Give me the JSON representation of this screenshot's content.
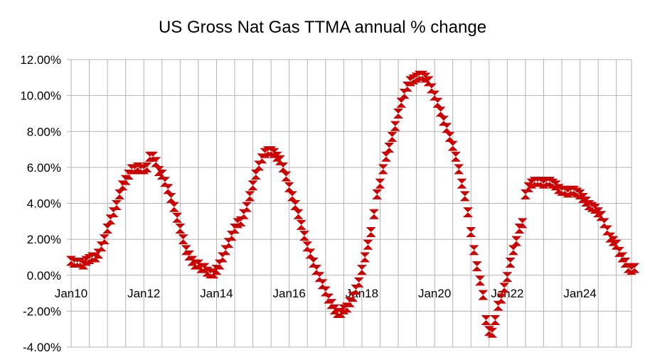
{
  "chart_data": {
    "type": "scatter",
    "title": "US Gross Nat Gas TTMA annual  % change",
    "xlabel": "",
    "ylabel": "",
    "marker": "hourglass",
    "marker_color": "#cc0000",
    "grid": true,
    "legend": "none",
    "x_ticks": [
      "Jan10",
      "Jan12",
      "Jan14",
      "Jan16",
      "Jan18",
      "Jan20",
      "Jan22",
      "Jan24"
    ],
    "y_ticks": [
      "-4.00%",
      "-2.00%",
      "0.00%",
      "2.00%",
      "4.00%",
      "6.00%",
      "8.00%",
      "10.00%",
      "12.00%"
    ],
    "xlim": [
      "2010-01",
      "2025-06"
    ],
    "ylim": [
      -4,
      12
    ],
    "series": [
      {
        "name": "",
        "start": "2010-01",
        "frequency": "monthly",
        "values": [
          0.8,
          0.7,
          0.7,
          0.7,
          0.6,
          0.8,
          0.9,
          1.0,
          1.0,
          1.2,
          1.6,
          2.0,
          2.6,
          3.1,
          3.5,
          3.9,
          4.5,
          5.0,
          5.3,
          5.6,
          5.9,
          5.9,
          6.0,
          5.9,
          5.9,
          6.0,
          6.6,
          6.6,
          6.3,
          5.8,
          5.6,
          5.2,
          4.8,
          4.3,
          3.8,
          3.2,
          2.6,
          2.0,
          1.4,
          1.1,
          0.8,
          0.6,
          0.6,
          0.4,
          0.4,
          0.2,
          0.1,
          0.1,
          0.3,
          0.6,
          1.0,
          1.4,
          1.8,
          2.2,
          2.6,
          2.9,
          3.0,
          3.4,
          3.8,
          4.4,
          5.0,
          5.6,
          6.1,
          6.5,
          6.8,
          6.9,
          6.9,
          6.8,
          6.6,
          6.4,
          6.0,
          5.5,
          4.9,
          4.4,
          3.9,
          3.4,
          2.8,
          2.2,
          1.6,
          1.2,
          0.7,
          0.3,
          -0.1,
          -0.5,
          -0.9,
          -1.3,
          -1.6,
          -1.9,
          -2.1,
          -2.1,
          -1.9,
          -1.8,
          -1.5,
          -1.2,
          -0.8,
          -0.4,
          0.3,
          1.0,
          1.7,
          2.4,
          3.4,
          4.5,
          5.1,
          5.9,
          6.6,
          7.1,
          7.7,
          8.3,
          9.0,
          9.6,
          10.1,
          10.5,
          10.8,
          10.9,
          11.0,
          11.1,
          11.1,
          11.0,
          10.8,
          10.4,
          10.0,
          9.6,
          9.1,
          8.6,
          8.2,
          7.7,
          7.2,
          6.6,
          5.9,
          5.1,
          4.4,
          3.5,
          2.4,
          1.4,
          0.5,
          -0.3,
          -1.1,
          -2.5,
          -3.1,
          -3.2,
          -2.5,
          -1.7,
          -1.3,
          -0.7,
          -0.1,
          0.7,
          1.4,
          1.9,
          2.6,
          2.9,
          4.5,
          4.9,
          5.1,
          5.2,
          5.2,
          5.2,
          5.1,
          5.2,
          5.2,
          5.1,
          5.0,
          4.8,
          4.7,
          4.7,
          4.6,
          4.7,
          4.7,
          4.6,
          4.5,
          4.3,
          4.1,
          3.9,
          3.8,
          3.7,
          3.5,
          3.3,
          2.9,
          2.5,
          2.1,
          1.9,
          1.7,
          1.3,
          1.0,
          0.7,
          0.4,
          0.3,
          0.4
        ]
      }
    ]
  }
}
